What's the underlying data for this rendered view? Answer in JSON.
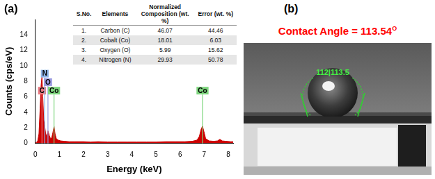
{
  "chart_data": {
    "type": "line",
    "x_label": "Energy (keV)",
    "y_label": "Counts (cps/eV)",
    "x": [
      0.0,
      0.05,
      0.1,
      0.15,
      0.2,
      0.24,
      0.277,
      0.31,
      0.35,
      0.39,
      0.43,
      0.47,
      0.525,
      0.58,
      0.63,
      0.68,
      0.73,
      0.776,
      0.82,
      0.87,
      0.95,
      1.05,
      1.2,
      1.4,
      1.6,
      1.8,
      2.0,
      2.3,
      2.6,
      3.0,
      3.4,
      3.8,
      4.2,
      4.6,
      5.0,
      5.4,
      5.8,
      6.2,
      6.5,
      6.7,
      6.8,
      6.87,
      6.93,
      6.99,
      7.06,
      7.2,
      7.4,
      7.55,
      7.65,
      7.75,
      7.9,
      8.1,
      8.2
    ],
    "values": [
      0,
      0.1,
      0.3,
      1.2,
      4.5,
      7.5,
      8.7,
      6.0,
      3.0,
      2.2,
      1.2,
      0.9,
      1.6,
      1.0,
      0.6,
      0.7,
      1.4,
      2.2,
      1.2,
      0.6,
      0.4,
      0.3,
      0.25,
      0.2,
      0.2,
      0.2,
      0.2,
      0.15,
      0.2,
      0.15,
      0.15,
      0.15,
      0.15,
      0.15,
      0.15,
      0.2,
      0.2,
      0.2,
      0.25,
      0.4,
      0.9,
      1.8,
      2.2,
      1.5,
      0.6,
      0.3,
      0.25,
      0.3,
      0.5,
      0.3,
      0.25,
      0.2,
      0.2
    ],
    "color": "#cc0000",
    "xlim": [
      0,
      8.2
    ],
    "xticks": [
      0,
      1,
      2,
      3,
      4,
      5,
      6,
      7,
      8
    ],
    "ylim": [
      0,
      16
    ],
    "yticks": [
      0,
      2,
      4,
      6,
      8,
      10,
      12,
      14
    ],
    "grid": false,
    "peak_markers": [
      {
        "label": "C",
        "energy": 0.277,
        "height": 6.3,
        "color": "#e87a82"
      },
      {
        "label": "N",
        "energy": 0.392,
        "height": 8.5,
        "color": "#8fb4e8"
      },
      {
        "label": "O",
        "energy": 0.525,
        "height": 7.4,
        "color": "#9a9ae0"
      },
      {
        "label": "Co",
        "energy": 0.776,
        "height": 6.3,
        "color": "#7ed67e"
      },
      {
        "label": "Co",
        "energy": 6.93,
        "height": 6.3,
        "color": "#7ed67e"
      }
    ]
  },
  "panel_labels": [
    "(a)",
    "(b)"
  ],
  "inset_table": {
    "header": [
      "S.No.",
      "Elements",
      "Normalized Composition (wt. %)",
      "Error (wt. %)"
    ],
    "rows": [
      [
        "1.",
        "Carbon (C)",
        46.07,
        44.46
      ],
      [
        "2.",
        "Cobalt (Co)",
        18.01,
        6.03
      ],
      [
        "3.",
        "Oxygen (O)",
        5.99,
        15.62
      ],
      [
        "4.",
        "Nitrogen (N)",
        29.93,
        50.78
      ]
    ]
  },
  "photo": {
    "title": "Contact Angle = 113.54",
    "title_superscript": "O",
    "title_color": "#ff0000",
    "measurement": "112|113.5"
  }
}
